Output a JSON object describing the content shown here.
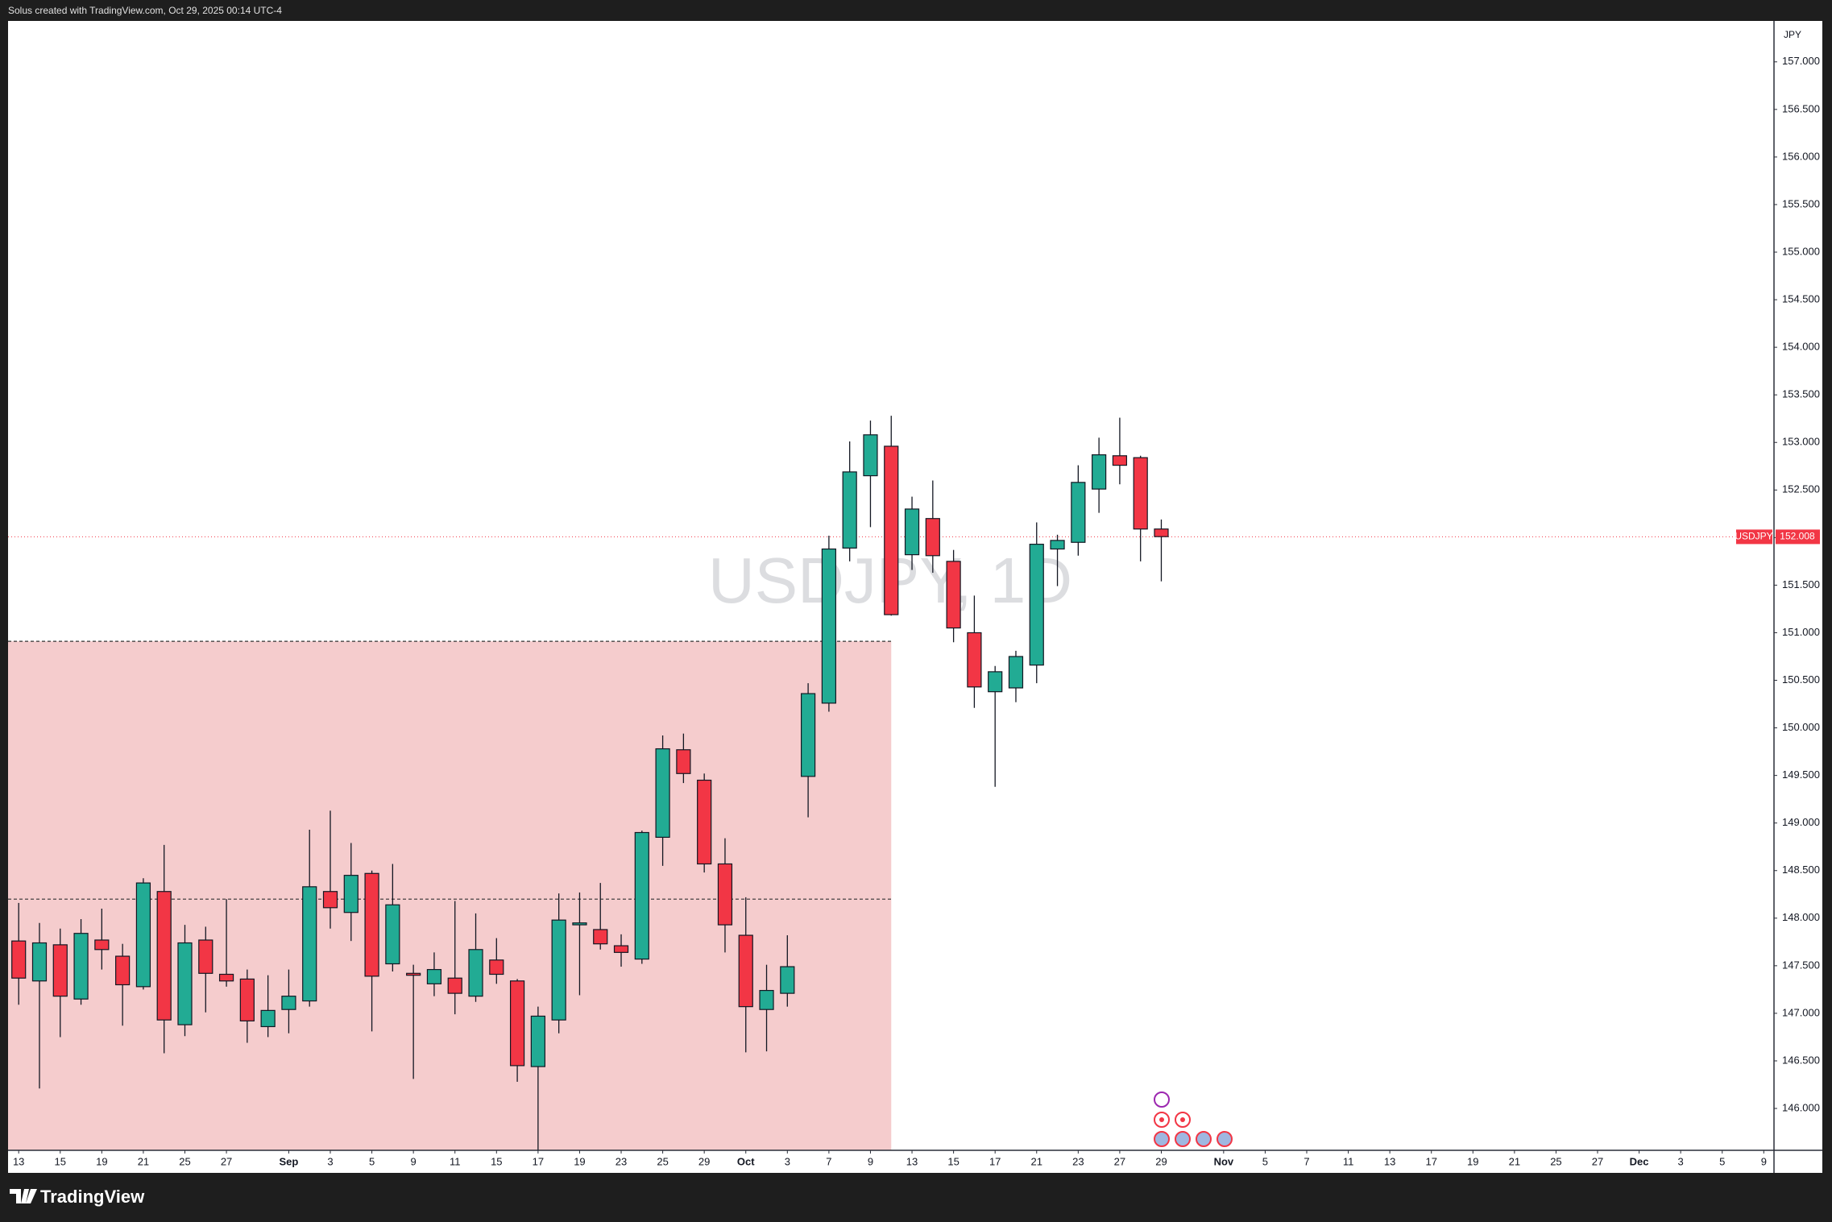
{
  "header": "Solus created with TradingView.com, Oct 29, 2025 00:14 UTC-4",
  "footer": "TradingView",
  "chart_data": {
    "type": "candlestick",
    "watermark": "USDJPY, 1D",
    "symbol": "USDJPY",
    "currency": "JPY",
    "last_price": 152.008,
    "up_color": "#22ab94",
    "down_color": "#f23645",
    "zone_color": "#f5cccd",
    "zone_levels": [
      150.91,
      148.2
    ],
    "ylim": [
      145.56,
      157.43
    ],
    "yticks": [
      {
        "value": 146,
        "label": "146.000"
      },
      {
        "value": 146.5,
        "label": "146.500"
      },
      {
        "value": 147,
        "label": "147.000"
      },
      {
        "value": 147.5,
        "label": "147.500"
      },
      {
        "value": 148,
        "label": "148.000"
      },
      {
        "value": 148.5,
        "label": "148.500"
      },
      {
        "value": 149,
        "label": "149.000"
      },
      {
        "value": 149.5,
        "label": "149.500"
      },
      {
        "value": 150,
        "label": "150.000"
      },
      {
        "value": 150.5,
        "label": "150.500"
      },
      {
        "value": 151,
        "label": "151.000"
      },
      {
        "value": 151.5,
        "label": "151.500"
      },
      {
        "value": 152,
        "label": "152.000"
      },
      {
        "value": 152.5,
        "label": "152.500"
      },
      {
        "value": 153,
        "label": "153.000"
      },
      {
        "value": 153.5,
        "label": "153.500"
      },
      {
        "value": 154,
        "label": "154.000"
      },
      {
        "value": 154.5,
        "label": "154.500"
      },
      {
        "value": 155,
        "label": "155.000"
      },
      {
        "value": 155.5,
        "label": "155.500"
      },
      {
        "value": 156,
        "label": "156.000"
      },
      {
        "value": 156.5,
        "label": "156.500"
      },
      {
        "value": 157,
        "label": "157.000"
      }
    ],
    "categories": [
      "13",
      null,
      "15",
      null,
      "19",
      null,
      "21",
      null,
      "25",
      null,
      "27",
      null,
      null,
      "Sep",
      null,
      "3",
      null,
      "5",
      null,
      "9",
      null,
      "11",
      null,
      "15",
      null,
      "17",
      null,
      "19",
      null,
      "23",
      null,
      "25",
      null,
      "29",
      null,
      "Oct",
      null,
      "3",
      null,
      "7",
      null,
      "9",
      null,
      "13",
      null,
      "15",
      null,
      "17",
      null,
      "21",
      null,
      "23",
      null,
      "27",
      null,
      "29",
      null,
      null,
      "Nov",
      null,
      "5",
      null,
      "7",
      null,
      "11",
      null,
      "13",
      null,
      "17",
      null,
      "19",
      null,
      "21",
      null,
      "25",
      null,
      "27",
      null,
      "Dec",
      null,
      "3",
      null,
      "5",
      null,
      "9"
    ],
    "open": [
      147.76,
      147.34,
      147.72,
      147.15,
      147.77,
      147.6,
      147.28,
      148.28,
      146.88,
      147.77,
      147.41,
      147.36,
      146.86,
      147.04,
      147.13,
      148.28,
      148.06,
      148.47,
      147.52,
      147.42,
      147.31,
      147.37,
      147.18,
      147.56,
      147.34,
      146.44,
      146.93,
      147.93,
      147.88,
      147.71,
      147.57,
      148.85,
      149.77,
      149.45,
      148.57,
      147.82,
      147.04,
      147.21,
      149.49,
      150.26,
      151.89,
      152.65,
      152.96,
      151.82,
      152.2,
      151.75,
      151.0,
      150.38,
      150.42,
      150.66,
      151.88,
      151.95,
      152.51,
      152.86,
      152.84,
      152.09,
      null,
      null,
      null,
      null,
      null,
      null,
      null,
      null,
      null,
      null,
      null,
      null,
      null,
      null,
      null,
      null,
      null,
      null,
      null,
      null,
      null,
      null,
      null,
      null,
      null,
      null,
      null,
      null,
      null
    ],
    "high": [
      148.16,
      147.95,
      147.89,
      147.99,
      148.1,
      147.73,
      148.42,
      148.77,
      147.93,
      147.91,
      148.2,
      147.46,
      147.4,
      147.46,
      148.93,
      149.13,
      148.79,
      148.5,
      148.57,
      147.51,
      147.64,
      148.18,
      148.05,
      147.79,
      147.36,
      147.07,
      148.26,
      148.27,
      148.37,
      147.83,
      148.92,
      149.92,
      149.94,
      149.52,
      148.84,
      148.22,
      147.51,
      147.82,
      150.47,
      152.02,
      153.01,
      153.23,
      153.28,
      152.43,
      152.6,
      151.87,
      151.39,
      150.65,
      150.81,
      152.16,
      152.03,
      152.76,
      153.05,
      153.26,
      152.86,
      152.19,
      null,
      null,
      null,
      null,
      null,
      null,
      null,
      null,
      null,
      null,
      null,
      null,
      null,
      null,
      null,
      null,
      null,
      null,
      null,
      null,
      null,
      null,
      null,
      null,
      null,
      null,
      null,
      null,
      null
    ],
    "low": [
      147.09,
      146.21,
      146.75,
      147.09,
      147.46,
      146.87,
      147.25,
      146.58,
      146.76,
      147.01,
      147.28,
      146.69,
      146.75,
      146.79,
      147.07,
      147.89,
      147.76,
      146.81,
      147.44,
      146.31,
      147.18,
      146.99,
      147.12,
      147.31,
      146.28,
      145.56,
      146.79,
      147.19,
      147.67,
      147.49,
      147.52,
      148.55,
      149.42,
      148.48,
      147.64,
      146.59,
      146.6,
      147.07,
      149.06,
      150.17,
      151.75,
      152.11,
      151.18,
      151.66,
      151.63,
      150.9,
      150.21,
      149.38,
      150.27,
      150.47,
      151.49,
      151.81,
      152.26,
      152.56,
      151.75,
      151.54,
      null,
      null,
      null,
      null,
      null,
      null,
      null,
      null,
      null,
      null,
      null,
      null,
      null,
      null,
      null,
      null,
      null,
      null,
      null,
      null,
      null,
      null,
      null,
      null,
      null,
      null,
      null,
      null,
      null
    ],
    "close": [
      147.37,
      147.74,
      147.18,
      147.84,
      147.67,
      147.3,
      148.37,
      146.93,
      147.74,
      147.42,
      147.34,
      146.92,
      147.03,
      147.18,
      148.33,
      148.11,
      148.45,
      147.39,
      148.14,
      147.4,
      147.46,
      147.21,
      147.67,
      147.41,
      146.45,
      146.97,
      147.98,
      147.95,
      147.73,
      147.64,
      148.9,
      149.78,
      149.52,
      148.57,
      147.93,
      147.07,
      147.24,
      147.49,
      150.36,
      151.88,
      152.69,
      153.08,
      151.19,
      152.3,
      151.81,
      151.05,
      150.43,
      150.59,
      150.75,
      151.93,
      151.97,
      152.58,
      152.87,
      152.76,
      152.09,
      152.01,
      null,
      null,
      null,
      null,
      null,
      null,
      null,
      null,
      null,
      null,
      null,
      null,
      null,
      null,
      null,
      null,
      null,
      null,
      null,
      null,
      null,
      null,
      null,
      null,
      null,
      null,
      null,
      null,
      null
    ]
  }
}
